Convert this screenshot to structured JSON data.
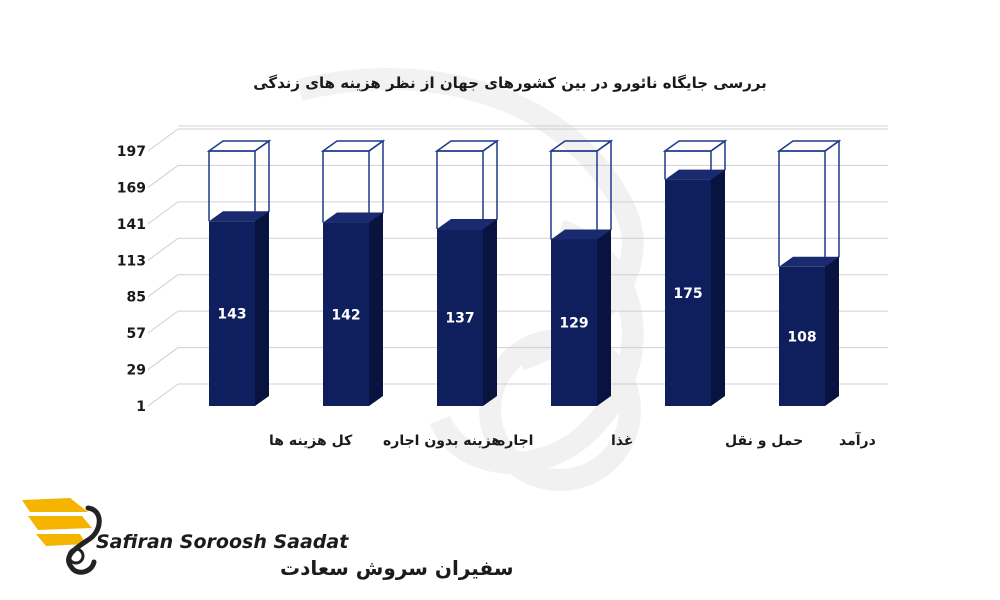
{
  "chart_data": {
    "type": "bar",
    "title": "بررسی جایگاه نائورو در بین کشورهای جهان از نظر هزینه های زندگی",
    "categories": [
      "کل هزینه ها",
      "هزینه بدون اجاره",
      "اجاره",
      "غذا",
      "حمل و نقل",
      "درآمد"
    ],
    "values": [
      143,
      142,
      137,
      129,
      175,
      108
    ],
    "max_value": 197,
    "yticks": [
      "1",
      "29",
      "57",
      "85",
      "113",
      "141",
      "169",
      "197"
    ],
    "ylim": [
      1,
      197
    ],
    "grid": true,
    "legend": "none",
    "colors": {
      "bar_front": "#0f1e5c",
      "bar_side": "#081340",
      "bar_top": "#1a2a6e",
      "outline": "#1f3b8c"
    }
  },
  "brand": {
    "name_en": "Safiran Soroosh Saadat",
    "name_fa": "سفیران سروش سعادت"
  }
}
